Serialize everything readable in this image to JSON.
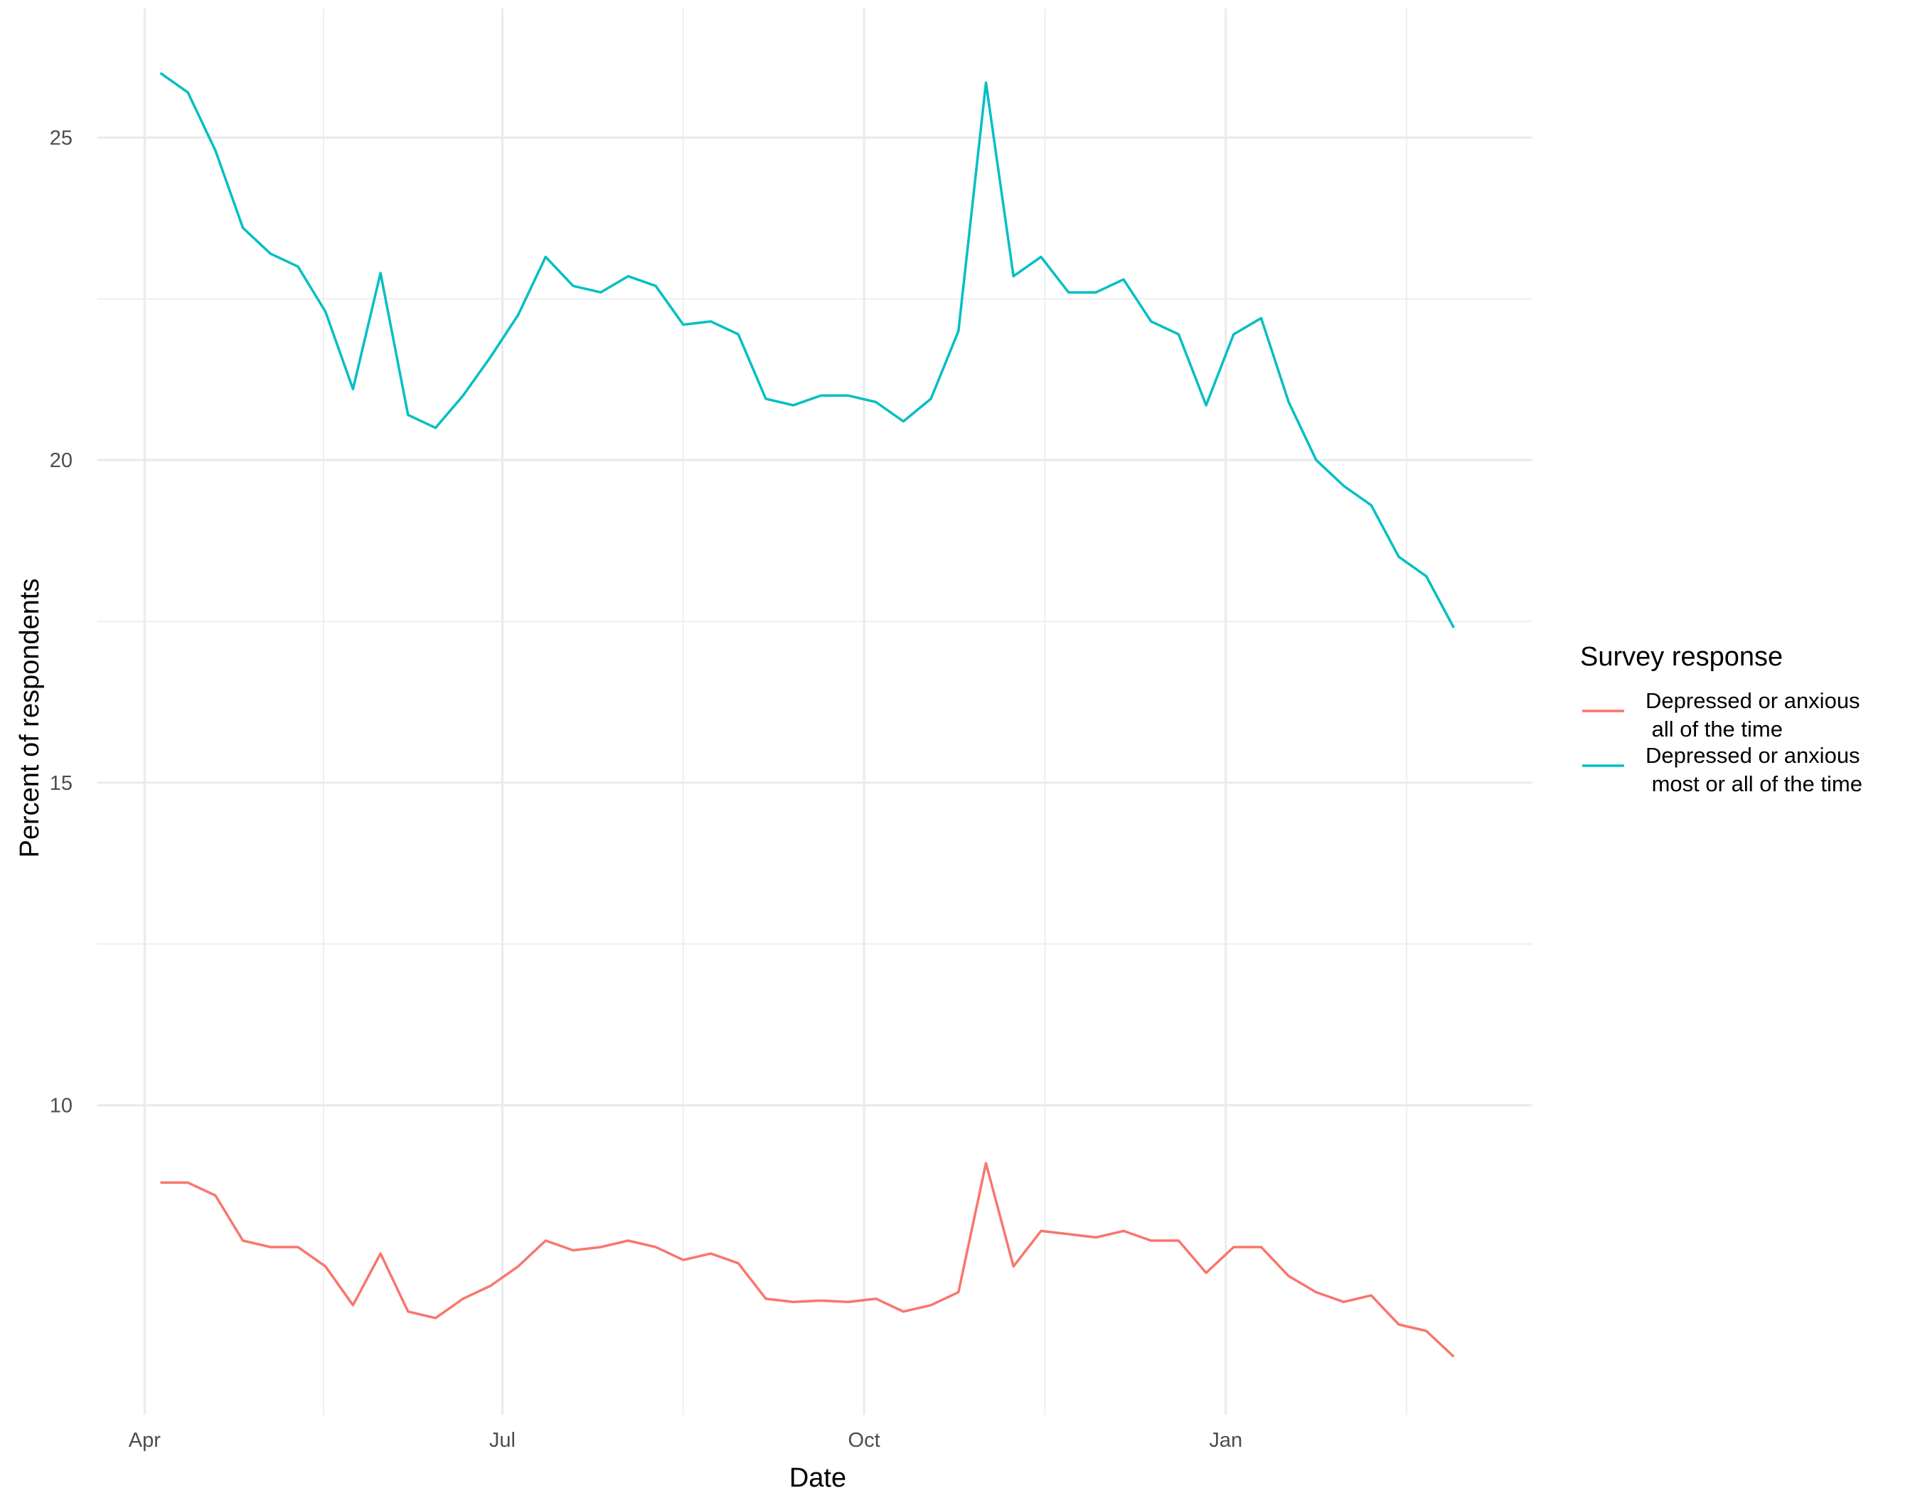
{
  "chart_data": {
    "type": "line",
    "title": "",
    "xlabel": "Date",
    "ylabel": "Percent of respondents",
    "x_tick_labels": [
      {
        "date": "2020-04-01",
        "label": "Apr"
      },
      {
        "date": "2020-07-01",
        "label": "Jul"
      },
      {
        "date": "2020-10-01",
        "label": "Oct"
      },
      {
        "date": "2021-01-01",
        "label": "Jan"
      }
    ],
    "y_ticks": [
      10,
      15,
      20,
      25
    ],
    "xlim": [
      "2020-03-20",
      "2021-03-20"
    ],
    "ylim": [
      5.2,
      27.0
    ],
    "grid": true,
    "legend": {
      "title": "Survey response",
      "position": "right",
      "entries": [
        {
          "line1": "Depressed or anxious",
          "line2": " all of the time",
          "color": "#F8766D"
        },
        {
          "line1": "Depressed or anxious",
          "line2": " most or all of the time",
          "color": "#00BFC4"
        }
      ]
    },
    "x": [
      "2020-04-05",
      "2020-04-12",
      "2020-04-19",
      "2020-04-26",
      "2020-05-03",
      "2020-05-10",
      "2020-05-17",
      "2020-05-24",
      "2020-05-31",
      "2020-06-07",
      "2020-06-14",
      "2020-06-21",
      "2020-06-28",
      "2020-07-05",
      "2020-07-12",
      "2020-07-19",
      "2020-07-26",
      "2020-08-02",
      "2020-08-09",
      "2020-08-16",
      "2020-08-23",
      "2020-08-30",
      "2020-09-06",
      "2020-09-13",
      "2020-09-20",
      "2020-09-27",
      "2020-10-04",
      "2020-10-11",
      "2020-10-18",
      "2020-10-25",
      "2020-11-01",
      "2020-11-08",
      "2020-11-15",
      "2020-11-22",
      "2020-11-29",
      "2020-12-06",
      "2020-12-13",
      "2020-12-20",
      "2020-12-27",
      "2021-01-03",
      "2021-01-10",
      "2021-01-17",
      "2021-01-24",
      "2021-01-31",
      "2021-02-07",
      "2021-02-14",
      "2021-02-21",
      "2021-02-28"
    ],
    "series": [
      {
        "name": "Depressed or anxious\n all of the time",
        "color": "#F8766D",
        "values": [
          8.8,
          8.8,
          8.6,
          7.9,
          7.8,
          7.8,
          7.5,
          6.9,
          7.7,
          6.8,
          6.7,
          7.0,
          7.2,
          7.5,
          7.9,
          7.75,
          7.8,
          7.9,
          7.8,
          7.6,
          7.7,
          7.55,
          7.0,
          6.95,
          6.97,
          6.95,
          7.0,
          6.8,
          6.9,
          7.1,
          9.1,
          7.5,
          8.05,
          8.0,
          7.95,
          8.05,
          7.9,
          7.9,
          7.4,
          7.8,
          7.8,
          7.35,
          7.1,
          6.95,
          7.05,
          6.6,
          6.5,
          6.1
        ]
      },
      {
        "name": "Depressed or anxious\n most or all of the time",
        "color": "#00BFC4",
        "values": [
          26.0,
          25.7,
          24.8,
          23.6,
          23.2,
          23.0,
          22.3,
          21.1,
          22.9,
          20.7,
          20.5,
          21.0,
          21.6,
          22.25,
          23.15,
          22.7,
          22.6,
          22.85,
          22.7,
          22.1,
          22.15,
          21.95,
          20.95,
          20.85,
          21.0,
          21.0,
          20.9,
          20.6,
          20.95,
          22.0,
          25.85,
          22.85,
          23.15,
          22.6,
          22.6,
          22.8,
          22.15,
          21.95,
          20.85,
          21.95,
          22.2,
          20.9,
          20.0,
          19.6,
          19.3,
          18.5,
          18.2,
          17.4
        ]
      }
    ]
  }
}
